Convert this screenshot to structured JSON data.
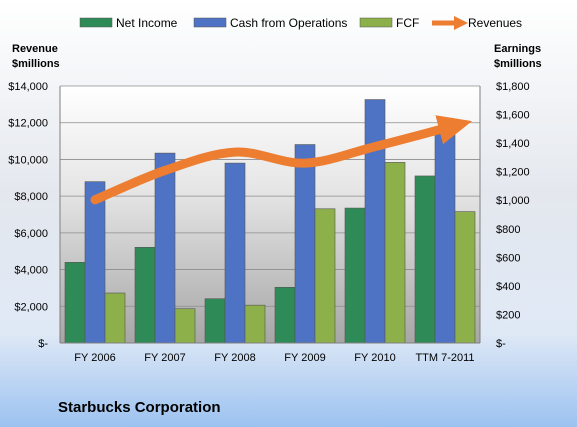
{
  "chart_data": {
    "type": "bar",
    "title": "Starbucks Corporation",
    "categories": [
      "FY 2006",
      "FY 2007",
      "FY 2008",
      "FY 2009",
      "FY 2010",
      "TTM 7-2011"
    ],
    "left_axis": {
      "label_line1": "Revenue",
      "label_line2": "$millions",
      "range": [
        0,
        14000
      ],
      "ticks": [
        0,
        2000,
        4000,
        6000,
        8000,
        10000,
        12000,
        14000
      ],
      "tick_labels": [
        "$-",
        "$2,000",
        "$4,000",
        "$6,000",
        "$8,000",
        "$10,000",
        "$12,000",
        "$14,000"
      ]
    },
    "right_axis": {
      "label_line1": "Earnings",
      "label_line2": "$millions",
      "range": [
        0,
        1800
      ],
      "ticks": [
        0,
        200,
        400,
        600,
        800,
        1000,
        1200,
        1400,
        1600,
        1800
      ],
      "tick_labels": [
        "$-",
        "$200",
        "$400",
        "$600",
        "$800",
        "$1,000",
        "$1,200",
        "$1,400",
        "$1,600",
        "$1,800"
      ]
    },
    "series": [
      {
        "name": "Net Income",
        "kind": "bar",
        "axis": "right",
        "color": "#2e8b57",
        "values": [
          565,
          670,
          310,
          390,
          945,
          1170
        ]
      },
      {
        "name": "Cash from Operations",
        "kind": "bar",
        "axis": "right",
        "color": "#4f73c4",
        "values": [
          1130,
          1330,
          1260,
          1390,
          1705,
          1460
        ]
      },
      {
        "name": "FCF",
        "kind": "bar",
        "axis": "right",
        "color": "#8db04a",
        "values": [
          350,
          240,
          265,
          940,
          1265,
          920
        ]
      },
      {
        "name": "Revenues",
        "kind": "line",
        "axis": "left",
        "color": "#ed7d31",
        "values": [
          7800,
          9400,
          10400,
          9800,
          10700,
          11700
        ]
      }
    ],
    "grid": true,
    "legend_position": "top"
  }
}
